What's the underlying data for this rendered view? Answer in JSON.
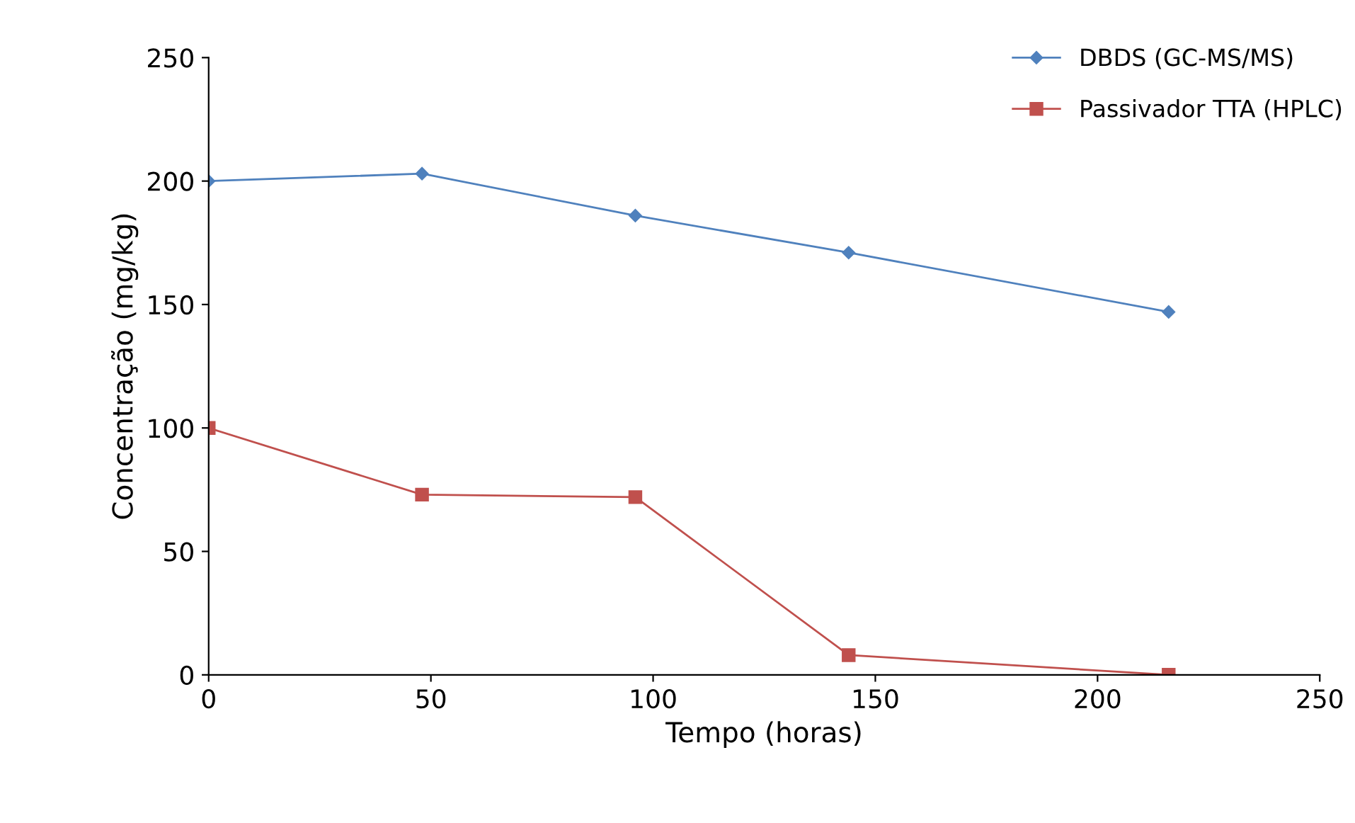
{
  "chart_data": {
    "type": "line",
    "xlabel": "Tempo (horas)",
    "ylabel": "Concentração (mg/kg)",
    "x": [
      0,
      48,
      96,
      144,
      216
    ],
    "series": [
      {
        "name": "DBDS (GC-MS/MS)",
        "color": "#4f81bd",
        "marker": "diamond",
        "values": [
          200,
          203,
          186,
          171,
          147
        ]
      },
      {
        "name": "Passivador TTA (HPLC)",
        "color": "#c0504d",
        "marker": "square",
        "values": [
          100,
          73,
          72,
          8,
          0
        ]
      }
    ],
    "xlim": [
      0,
      250
    ],
    "xticks": [
      0,
      50,
      100,
      150,
      200,
      250
    ],
    "ylim": [
      0,
      250
    ],
    "yticks": [
      0,
      50,
      100,
      150,
      200,
      250
    ],
    "grid": false,
    "legend": "top right",
    "line_style": "solid"
  }
}
